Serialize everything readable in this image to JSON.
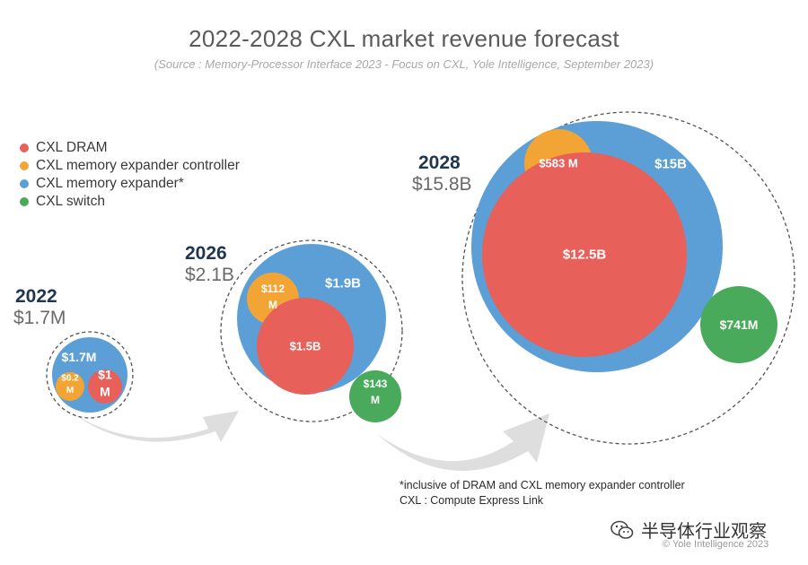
{
  "chart_data": {
    "type": "bubble",
    "title": "2022-2028 CXL market revenue forecast",
    "subtitle": "(Source : Memory-Processor Interface 2023 - Focus on CXL, Yole Intelligence, September 2023)",
    "legend": [
      {
        "name": "CXL DRAM",
        "color": "#e8605a"
      },
      {
        "name": "CXL memory expander controller",
        "color": "#f2a534"
      },
      {
        "name": "CXL memory expander*",
        "color": "#5b9fd6"
      },
      {
        "name": "CXL switch",
        "color": "#4aaa5b"
      }
    ],
    "groups": [
      {
        "year": "2022",
        "total_label": "$1.7M",
        "total_usd_m": 1.7,
        "segments": [
          {
            "series": "CXL memory expander*",
            "label": "$1.7M",
            "value_usd_m": 1.7
          },
          {
            "series": "CXL memory expander controller",
            "label": "$0.2 M",
            "value_usd_m": 0.2
          },
          {
            "series": "CXL DRAM",
            "label": "$1 M",
            "value_usd_m": 1
          }
        ]
      },
      {
        "year": "2026",
        "total_label": "$2.1B",
        "total_usd_m": 2100,
        "segments": [
          {
            "series": "CXL memory expander*",
            "label": "$1.9B",
            "value_usd_m": 1900
          },
          {
            "series": "CXL memory expander controller",
            "label": "$112 M",
            "value_usd_m": 112
          },
          {
            "series": "CXL DRAM",
            "label": "$1.5B",
            "value_usd_m": 1500
          },
          {
            "series": "CXL switch",
            "label": "$143 M",
            "value_usd_m": 143
          }
        ]
      },
      {
        "year": "2028",
        "total_label": "$15.8B",
        "total_usd_m": 15800,
        "segments": [
          {
            "series": "CXL memory expander*",
            "label": "$15B",
            "value_usd_m": 15000
          },
          {
            "series": "CXL memory expander controller",
            "label": "$583 M",
            "value_usd_m": 583
          },
          {
            "series": "CXL DRAM",
            "label": "$12.5B",
            "value_usd_m": 12500
          },
          {
            "series": "CXL switch",
            "label": "$741M",
            "value_usd_m": 741
          }
        ]
      }
    ]
  },
  "footnote": {
    "line1": "*inclusive of DRAM and CXL memory expander controller",
    "line2": "CXL : Compute Express Link"
  },
  "watermark": {
    "text": "半导体行业观察",
    "icon": "wechat-icon"
  },
  "copyright": "© Yole Intelligence 2023",
  "colors": {
    "dram": "#e8605a",
    "controller": "#f2a534",
    "expander": "#5b9fd6",
    "switch": "#4aaa5b",
    "arrow": "#dedede",
    "dashed_ring": "#555555"
  }
}
